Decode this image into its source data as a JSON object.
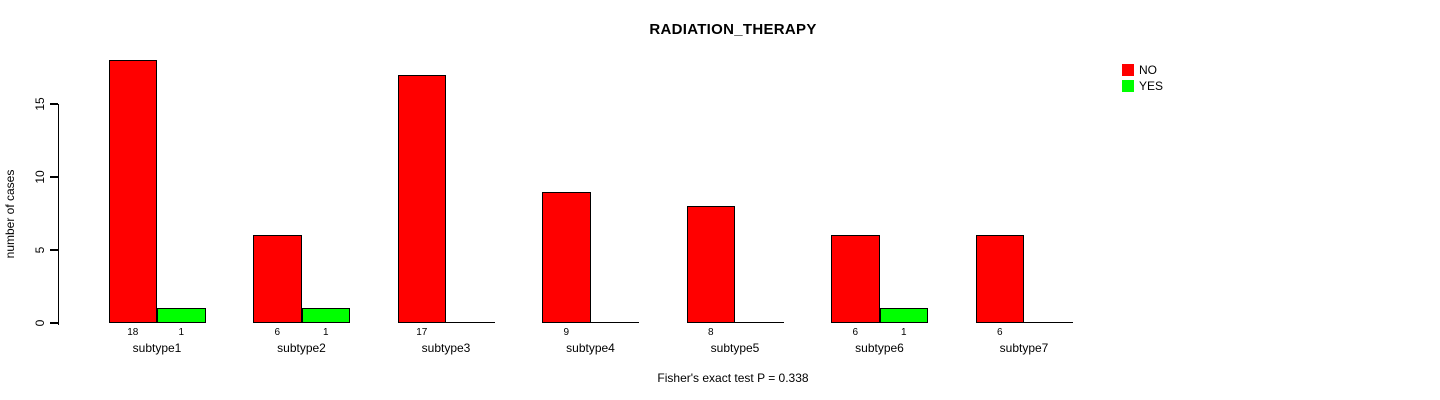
{
  "chart_data": {
    "type": "bar",
    "title": "RADIATION_THERAPY",
    "ylabel": "number of cases",
    "xlabel": "",
    "footnote": "Fisher's exact test P = 0.338",
    "categories": [
      "subtype1",
      "subtype2",
      "subtype3",
      "subtype4",
      "subtype5",
      "subtype6",
      "subtype7"
    ],
    "series": [
      {
        "name": "NO",
        "color": "#ff0000",
        "values": [
          18,
          6,
          17,
          9,
          8,
          6,
          6
        ]
      },
      {
        "name": "YES",
        "color": "#00ff00",
        "values": [
          1,
          1,
          0,
          0,
          0,
          1,
          0
        ]
      }
    ],
    "bar_value_labels": [
      [
        "18",
        "1"
      ],
      [
        "6",
        "1"
      ],
      [
        "17",
        ""
      ],
      [
        "9",
        ""
      ],
      [
        "8",
        ""
      ],
      [
        "6",
        "1"
      ],
      [
        "6",
        ""
      ]
    ],
    "yticks": [
      0,
      5,
      10,
      15
    ],
    "ylim": [
      0,
      18
    ],
    "grid": false,
    "legend_position": "top-right",
    "background_color": "#ffffff",
    "axis_color": "#000000"
  }
}
